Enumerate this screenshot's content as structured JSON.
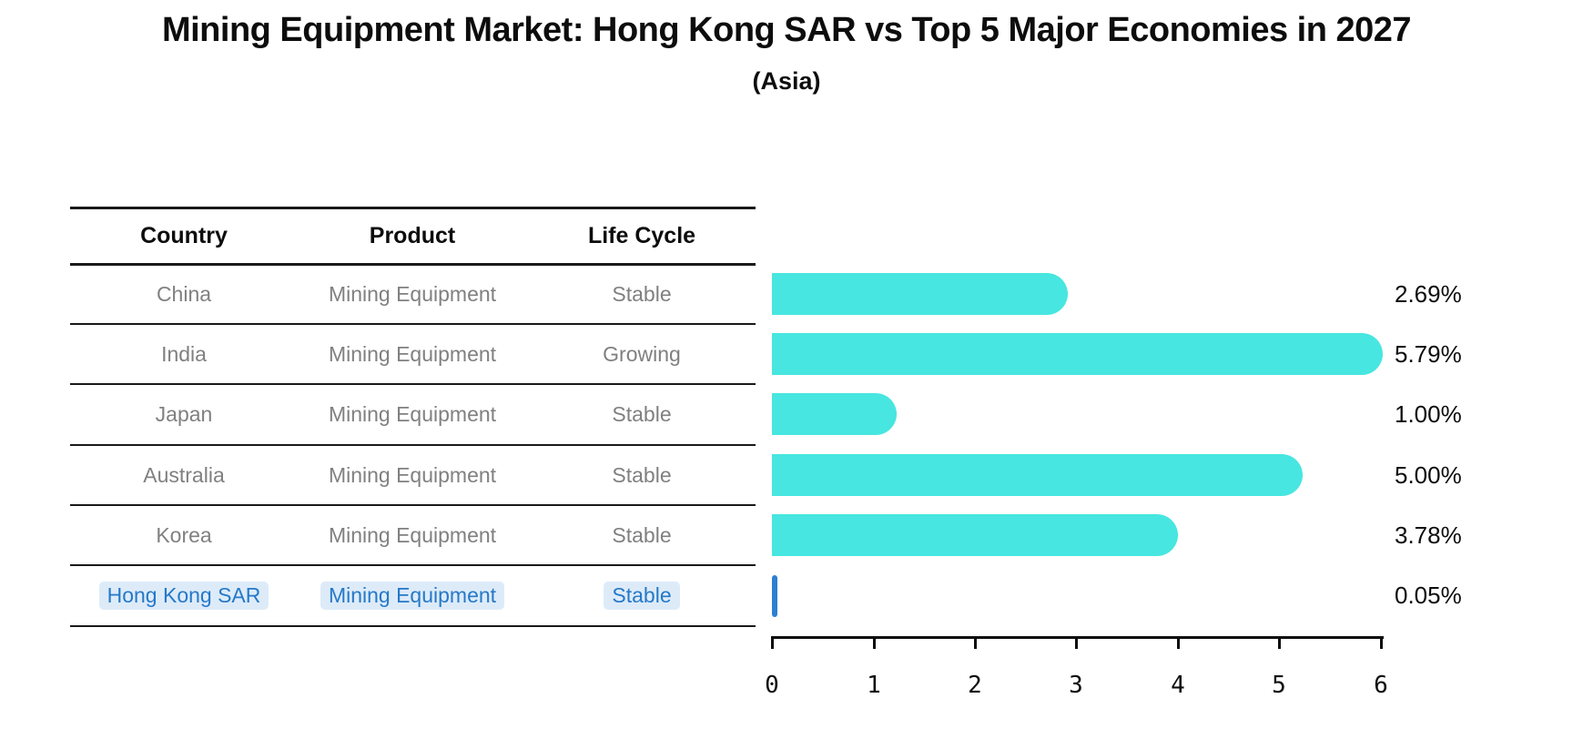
{
  "title": "Mining Equipment Market: Hong Kong SAR vs Top 5 Major Economies in 2027",
  "subtitle": "(Asia)",
  "table": {
    "headers": {
      "country": "Country",
      "product": "Product",
      "life_cycle": "Life Cycle"
    },
    "rows": [
      {
        "country": "China",
        "product": "Mining Equipment",
        "life_cycle": "Stable"
      },
      {
        "country": "India",
        "product": "Mining Equipment",
        "life_cycle": "Growing"
      },
      {
        "country": "Japan",
        "product": "Mining Equipment",
        "life_cycle": "Stable"
      },
      {
        "country": "Australia",
        "product": "Mining Equipment",
        "life_cycle": "Stable"
      },
      {
        "country": "Korea",
        "product": "Mining Equipment",
        "life_cycle": "Stable"
      },
      {
        "country": "Hong Kong SAR",
        "product": "Mining Equipment",
        "life_cycle": "Stable"
      }
    ],
    "highlight_row": "Hong Kong SAR"
  },
  "chart_data": {
    "type": "bar",
    "orientation": "horizontal",
    "title": "Mining Equipment Market: Hong Kong SAR vs Top 5 Major Economies in 2027 (Asia)",
    "categories": [
      "China",
      "India",
      "Japan",
      "Australia",
      "Korea",
      "Hong Kong SAR"
    ],
    "values": [
      2.69,
      5.79,
      1.0,
      5.0,
      3.78,
      0.05
    ],
    "labels": [
      "2.69%",
      "5.79%",
      "1.00%",
      "5.00%",
      "3.78%",
      "0.05%"
    ],
    "xlim": [
      0,
      6
    ],
    "x_ticks": [
      0,
      1,
      2,
      3,
      4,
      5,
      6
    ],
    "x_tick_labels": [
      "0",
      "1",
      "2",
      "3",
      "4",
      "5",
      "6"
    ],
    "grid": false,
    "legend": null,
    "bar_color": "#47E6E0",
    "highlight_color": "#2D7FD3",
    "highlight_index": 5
  },
  "colors": {
    "text_dark": "#0d0d0d",
    "text_gray": "#808080",
    "highlight_text": "#2579C8",
    "highlight_bg": "#DDEBF9"
  }
}
